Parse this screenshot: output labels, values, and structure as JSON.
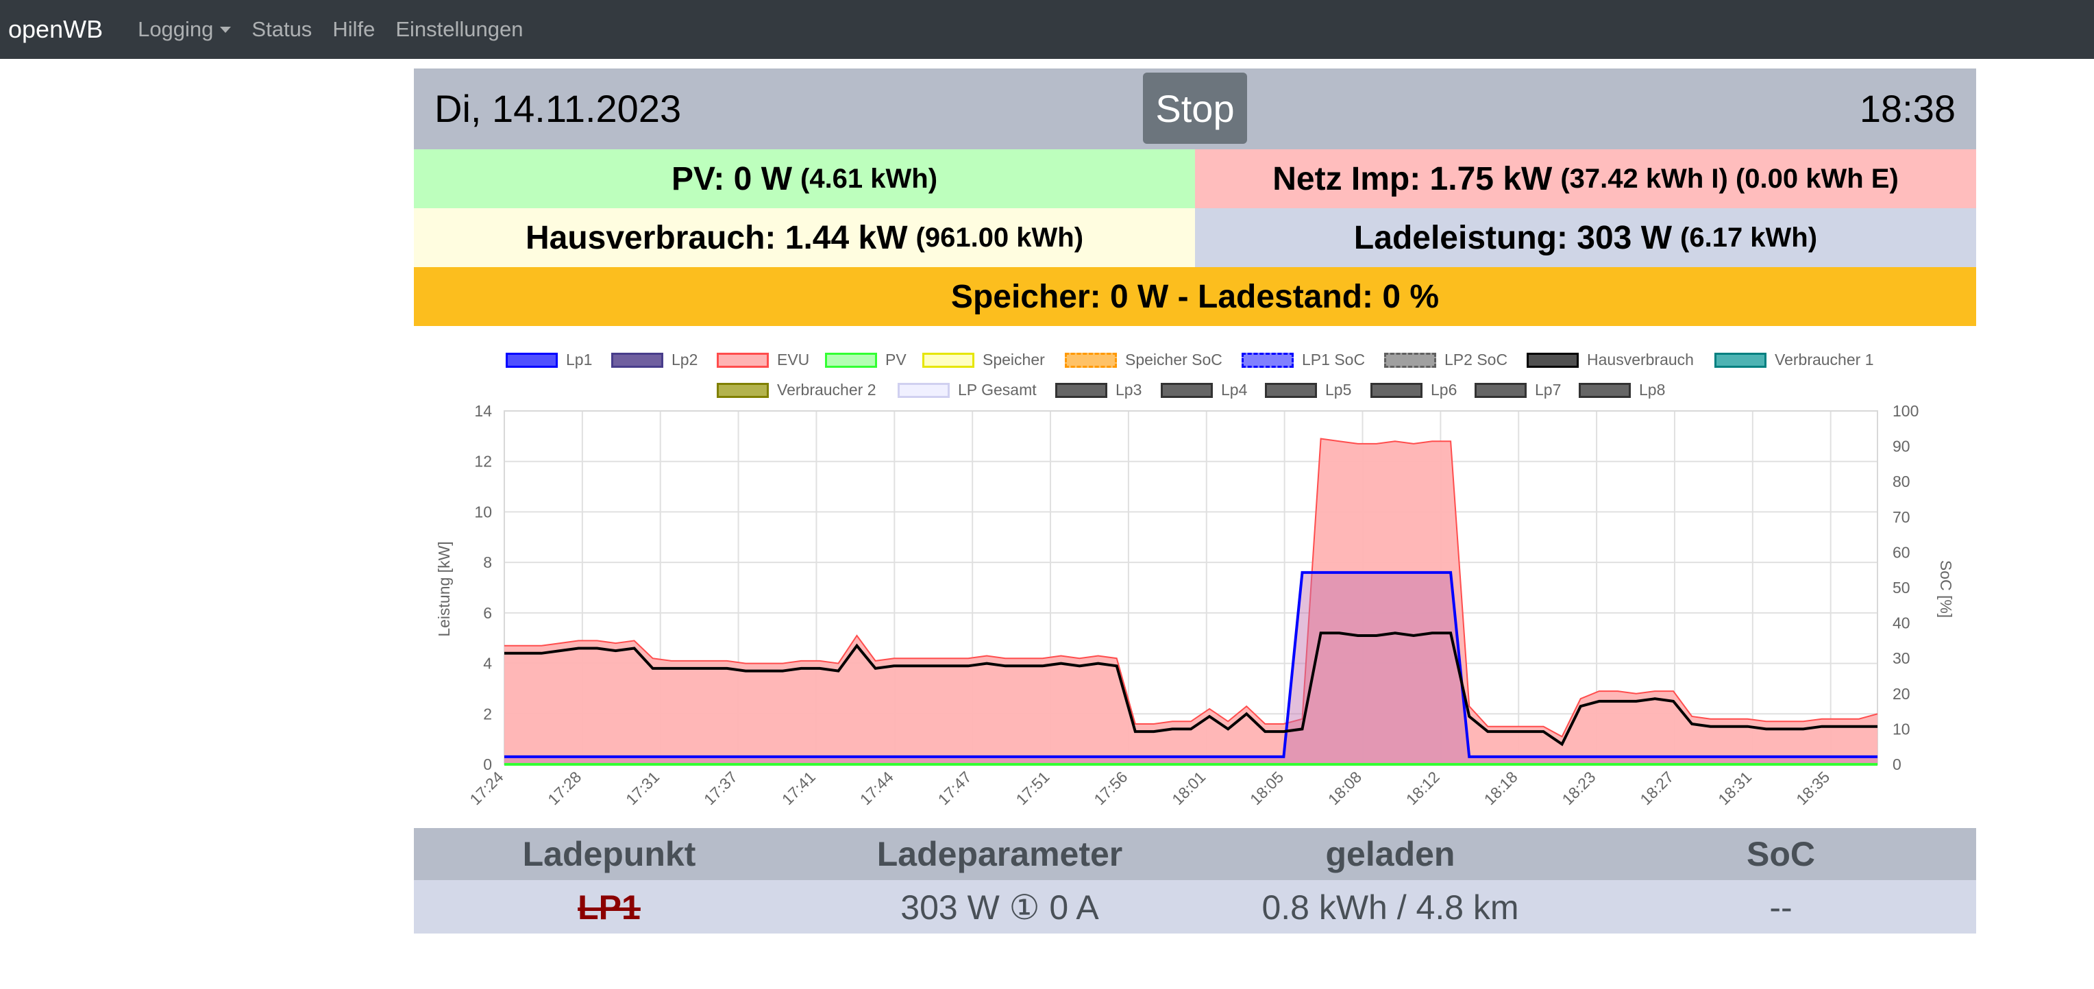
{
  "nav": {
    "brand": "openWB",
    "items": [
      {
        "label": "Logging",
        "dropdown": true
      },
      {
        "label": "Status"
      },
      {
        "label": "Hilfe"
      },
      {
        "label": "Einstellungen"
      }
    ]
  },
  "header": {
    "date": "Di, 14.11.2023",
    "stop_label": "Stop",
    "time": "18:38"
  },
  "summary": {
    "pv": {
      "label": "PV: 0 W",
      "detail": "(4.61 kWh)",
      "color": "#bdffbd"
    },
    "netz": {
      "label": "Netz Imp: 1.75 kW",
      "detail": "(37.42 kWh I) (0.00 kWh E)",
      "color": "#ffbdbd"
    },
    "haus": {
      "label": "Hausverbrauch: 1.44 kW",
      "detail": "(961.00 kWh)",
      "color": "#fffde0"
    },
    "lade": {
      "label": "Ladeleistung: 303 W",
      "detail": "(6.17 kWh)",
      "color": "#cfd5e6"
    },
    "speicher": {
      "label": "Speicher: 0 W - Ladestand: 0 %",
      "color": "#fcbe1e"
    }
  },
  "chart_data": {
    "type": "line",
    "ylabel": "Leistung [kW]",
    "y2label": "SoC [%]",
    "ylim": [
      0,
      14
    ],
    "y2lim": [
      0,
      100
    ],
    "yticks": [
      0,
      2,
      4,
      6,
      8,
      10,
      12,
      14
    ],
    "y2ticks": [
      0,
      10,
      20,
      30,
      40,
      50,
      60,
      70,
      80,
      90,
      100
    ],
    "xticks": [
      "17:24",
      "17:28",
      "17:31",
      "17:37",
      "17:41",
      "17:44",
      "17:47",
      "17:51",
      "17:56",
      "18:01",
      "18:05",
      "18:08",
      "18:12",
      "18:18",
      "18:23",
      "18:27",
      "18:31",
      "18:35"
    ],
    "legend": [
      {
        "name": "Lp1",
        "color": "#5050ff",
        "border": "#0000ff",
        "dashed": false
      },
      {
        "name": "Lp2",
        "color": "#6f5f9f",
        "border": "#483d8b",
        "dashed": false
      },
      {
        "name": "EVU",
        "color": "#ffb3b3",
        "border": "#ff4d4d",
        "dashed": false
      },
      {
        "name": "PV",
        "color": "#b3ffb3",
        "border": "#33ff33",
        "dashed": false
      },
      {
        "name": "Speicher",
        "color": "#ffffc2",
        "border": "#e6e600",
        "dashed": false
      },
      {
        "name": "Speicher SoC",
        "color": "#ffc266",
        "border": "#ff9900",
        "dashed": true
      },
      {
        "name": "LP1 SoC",
        "color": "#8080ff",
        "border": "#0000ff",
        "dashed": true
      },
      {
        "name": "LP2 SoC",
        "color": "#a0a0a0",
        "border": "#606060",
        "dashed": true
      },
      {
        "name": "Hausverbrauch",
        "color": "#505050",
        "border": "#000000",
        "dashed": false
      },
      {
        "name": "Verbraucher 1",
        "color": "#4db3b3",
        "border": "#008080",
        "dashed": false
      },
      {
        "name": "Verbraucher 2",
        "color": "#b3b34d",
        "border": "#808000",
        "dashed": false
      },
      {
        "name": "LP Gesamt",
        "color": "#f0f0ff",
        "border": "#d0d0f0",
        "dashed": false
      },
      {
        "name": "Lp3",
        "color": "#666666",
        "border": "#333333",
        "dashed": false
      },
      {
        "name": "Lp4",
        "color": "#666666",
        "border": "#333333",
        "dashed": false
      },
      {
        "name": "Lp5",
        "color": "#666666",
        "border": "#333333",
        "dashed": false
      },
      {
        "name": "Lp6",
        "color": "#666666",
        "border": "#333333",
        "dashed": false
      },
      {
        "name": "Lp7",
        "color": "#666666",
        "border": "#333333",
        "dashed": false
      },
      {
        "name": "Lp8",
        "color": "#666666",
        "border": "#333333",
        "dashed": false
      }
    ],
    "grid": true,
    "x_index_range": [
      0,
      74
    ],
    "series": [
      {
        "name": "EVU",
        "fill": true,
        "x": [
          0,
          2,
          3,
          4,
          5,
          6,
          7,
          8,
          9,
          10,
          11,
          12,
          13,
          14,
          15,
          16,
          17,
          18,
          19,
          20,
          21,
          22,
          23,
          24,
          25,
          26,
          27,
          28,
          29,
          30,
          31,
          32,
          33,
          34,
          35,
          36,
          37,
          38,
          39,
          40,
          41,
          42,
          43,
          44,
          45,
          46,
          47,
          48,
          49,
          50,
          51,
          52,
          53,
          54,
          55,
          56,
          57,
          58,
          59,
          60,
          61,
          62,
          63,
          64,
          65,
          66,
          67,
          68,
          69,
          70,
          71,
          72,
          73,
          74
        ],
        "y": [
          4.7,
          4.7,
          4.8,
          4.9,
          4.9,
          4.8,
          4.9,
          4.2,
          4.1,
          4.1,
          4.1,
          4.1,
          4.0,
          4.0,
          4.0,
          4.1,
          4.1,
          4.0,
          5.1,
          4.1,
          4.2,
          4.2,
          4.2,
          4.2,
          4.2,
          4.3,
          4.2,
          4.2,
          4.2,
          4.3,
          4.2,
          4.3,
          4.2,
          1.6,
          1.6,
          1.7,
          1.7,
          2.2,
          1.7,
          2.3,
          1.6,
          1.6,
          1.8,
          12.9,
          12.8,
          12.7,
          12.7,
          12.8,
          12.7,
          12.8,
          12.8,
          2.3,
          1.5,
          1.5,
          1.5,
          1.5,
          1.1,
          2.6,
          2.9,
          2.9,
          2.8,
          2.9,
          2.9,
          1.9,
          1.8,
          1.8,
          1.8,
          1.7,
          1.7,
          1.7,
          1.8,
          1.8,
          1.8,
          2.0
        ]
      },
      {
        "name": "Lp1",
        "x": [
          0,
          2,
          4,
          6,
          8,
          10,
          12,
          14,
          16,
          18,
          20,
          22,
          24,
          26,
          28,
          30,
          32,
          34,
          36,
          38,
          40,
          41,
          42,
          43,
          44,
          46,
          48,
          50,
          51,
          52,
          54,
          56,
          58,
          60,
          62,
          64,
          66,
          68,
          70,
          72,
          74
        ],
        "y": [
          0.3,
          0.3,
          0.3,
          0.3,
          0.3,
          0.3,
          0.3,
          0.3,
          0.3,
          0.3,
          0.3,
          0.3,
          0.3,
          0.3,
          0.3,
          0.3,
          0.3,
          0.3,
          0.3,
          0.3,
          0.3,
          0.3,
          0.3,
          7.6,
          7.6,
          7.6,
          7.6,
          7.6,
          7.6,
          0.3,
          0.3,
          0.3,
          0.3,
          0.3,
          0.3,
          0.3,
          0.3,
          0.3,
          0.3,
          0.3,
          0.3
        ]
      },
      {
        "name": "Hausverbrauch",
        "x": [
          0,
          2,
          3,
          4,
          5,
          6,
          7,
          8,
          9,
          10,
          11,
          12,
          13,
          14,
          15,
          16,
          17,
          18,
          19,
          20,
          21,
          22,
          23,
          24,
          25,
          26,
          27,
          28,
          29,
          30,
          31,
          32,
          33,
          34,
          35,
          36,
          37,
          38,
          39,
          40,
          41,
          42,
          43,
          44,
          45,
          46,
          47,
          48,
          49,
          50,
          51,
          52,
          53,
          54,
          55,
          56,
          57,
          58,
          59,
          60,
          61,
          62,
          63,
          64,
          65,
          66,
          67,
          68,
          69,
          70,
          71,
          72,
          73,
          74
        ],
        "y": [
          4.4,
          4.4,
          4.5,
          4.6,
          4.6,
          4.5,
          4.6,
          3.8,
          3.8,
          3.8,
          3.8,
          3.8,
          3.7,
          3.7,
          3.7,
          3.8,
          3.8,
          3.7,
          4.7,
          3.8,
          3.9,
          3.9,
          3.9,
          3.9,
          3.9,
          4.0,
          3.9,
          3.9,
          3.9,
          4.0,
          3.9,
          4.0,
          3.9,
          1.3,
          1.3,
          1.4,
          1.4,
          1.9,
          1.4,
          2.0,
          1.3,
          1.3,
          1.4,
          5.2,
          5.2,
          5.1,
          5.1,
          5.2,
          5.1,
          5.2,
          5.2,
          1.9,
          1.3,
          1.3,
          1.3,
          1.3,
          0.8,
          2.3,
          2.5,
          2.5,
          2.5,
          2.6,
          2.5,
          1.6,
          1.5,
          1.5,
          1.5,
          1.4,
          1.4,
          1.4,
          1.5,
          1.5,
          1.5,
          1.5
        ]
      },
      {
        "name": "PV",
        "x": [
          0,
          74
        ],
        "y": [
          0,
          0
        ]
      }
    ]
  },
  "table": {
    "headers": [
      "Ladepunkt",
      "Ladeparameter",
      "geladen",
      "SoC"
    ],
    "row": {
      "lp": "LP1",
      "param_watt": "303 W",
      "phase_symbol": "①",
      "param_amp": "0 A",
      "charged": "0.8 kWh / 4.8 km",
      "soc": "--"
    }
  }
}
